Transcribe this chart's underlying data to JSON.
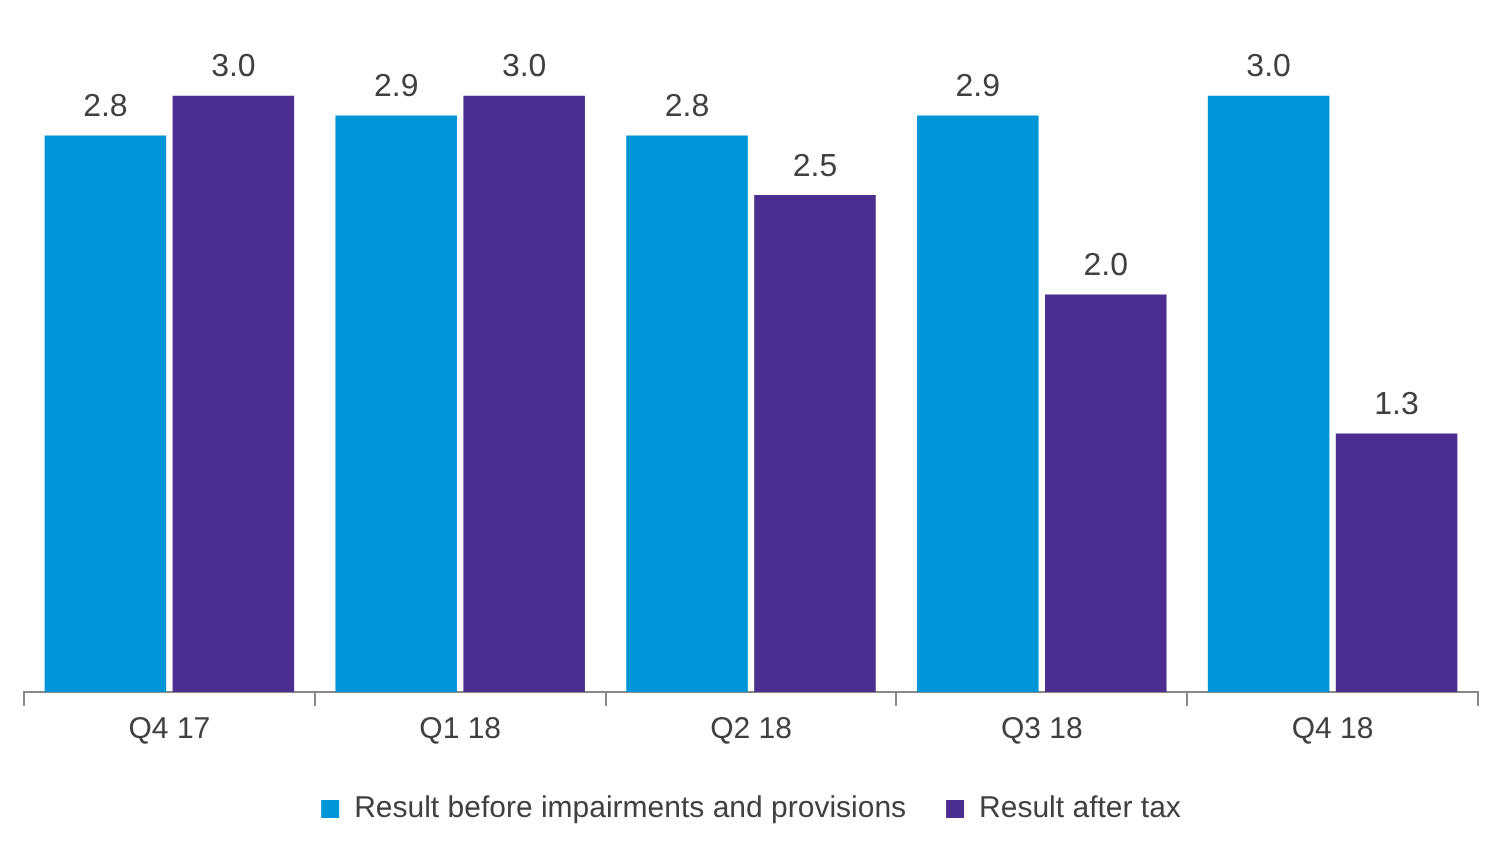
{
  "chart_data": {
    "type": "bar",
    "categories": [
      "Q4 17",
      "Q1 18",
      "Q2 18",
      "Q3 18",
      "Q4 18"
    ],
    "series": [
      {
        "name": "Result before impairments and provisions",
        "color": "#0095d6",
        "values": [
          2.8,
          2.9,
          2.8,
          2.9,
          3.0
        ],
        "value_labels": [
          "2.8",
          "2.9",
          "2.8",
          "2.9",
          "3.0"
        ]
      },
      {
        "name": "Result after tax",
        "color": "#4b2e8f",
        "values": [
          3.0,
          3.0,
          2.5,
          2.0,
          1.3
        ],
        "value_labels": [
          "3.0",
          "3.0",
          "2.5",
          "2.0",
          "1.3"
        ]
      }
    ],
    "legend": "bottom",
    "grid": false
  }
}
